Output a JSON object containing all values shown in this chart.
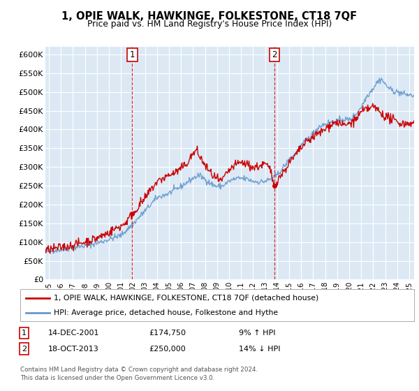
{
  "title": "1, OPIE WALK, HAWKINGE, FOLKESTONE, CT18 7QF",
  "subtitle": "Price paid vs. HM Land Registry's House Price Index (HPI)",
  "legend_line1": "1, OPIE WALK, HAWKINGE, FOLKESTONE, CT18 7QF (detached house)",
  "legend_line2": "HPI: Average price, detached house, Folkestone and Hythe",
  "annotation1_label": "1",
  "annotation1_date": "14-DEC-2001",
  "annotation1_price": "£174,750",
  "annotation1_hpi": "9% ↑ HPI",
  "annotation2_label": "2",
  "annotation2_date": "18-OCT-2013",
  "annotation2_price": "£250,000",
  "annotation2_hpi": "14% ↓ HPI",
  "footer": "Contains HM Land Registry data © Crown copyright and database right 2024.\nThis data is licensed under the Open Government Licence v3.0.",
  "ylim": [
    0,
    620000
  ],
  "yticks": [
    0,
    50000,
    100000,
    150000,
    200000,
    250000,
    300000,
    350000,
    400000,
    450000,
    500000,
    550000,
    600000
  ],
  "ytick_labels": [
    "£0",
    "£50K",
    "£100K",
    "£150K",
    "£200K",
    "£250K",
    "£300K",
    "£350K",
    "£400K",
    "£450K",
    "£500K",
    "£550K",
    "£600K"
  ],
  "xlim_start": 1994.7,
  "xlim_end": 2025.4,
  "xticks": [
    1995,
    1996,
    1997,
    1998,
    1999,
    2000,
    2001,
    2002,
    2003,
    2004,
    2005,
    2006,
    2007,
    2008,
    2009,
    2010,
    2011,
    2012,
    2013,
    2014,
    2015,
    2016,
    2017,
    2018,
    2019,
    2020,
    2021,
    2022,
    2023,
    2024,
    2025
  ],
  "bg_color": "#dce9f5",
  "grid_color": "#ffffff",
  "hpi_color": "#6699cc",
  "price_color": "#cc0000",
  "sale1_x": 2001.95,
  "sale1_y": 174750,
  "sale2_x": 2013.79,
  "sale2_y": 250000,
  "marker_color": "#cc0000",
  "vline_color": "#cc0000"
}
